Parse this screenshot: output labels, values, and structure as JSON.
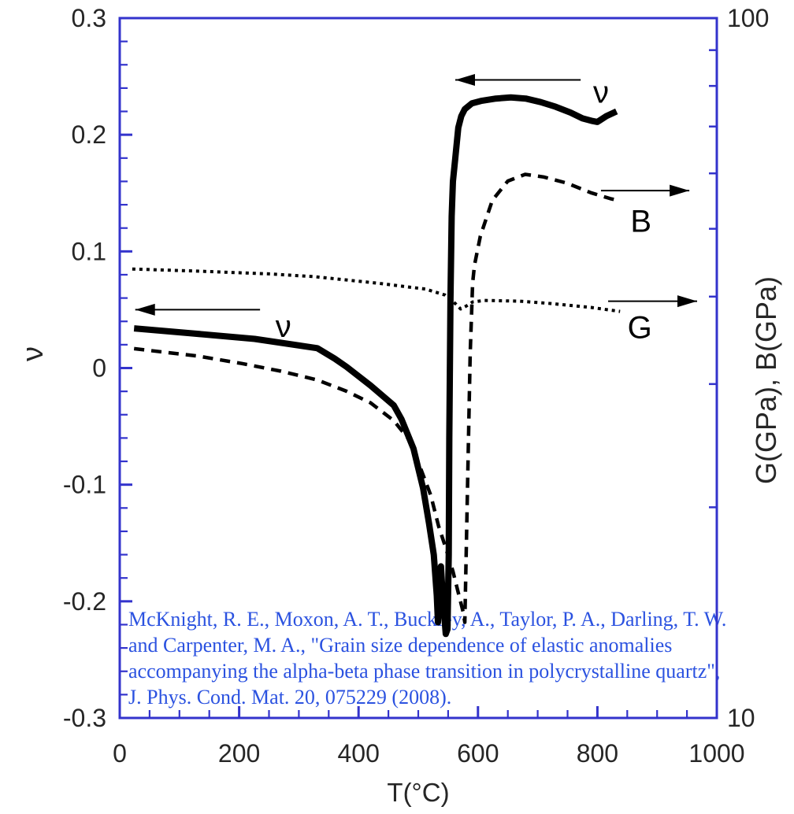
{
  "chart_data": {
    "type": "line",
    "title": "",
    "xlabel": "T(°C)",
    "ylabel_left": "ν",
    "ylabel_right": "G(GPa), B(GPa)",
    "frame_color": "#3333cc",
    "curve_color": "#000000",
    "tick_label_color": "#262626",
    "grid": false,
    "axes": {
      "bottom": {
        "min": 0,
        "max": 1000,
        "scale": "linear",
        "major_ticks": [
          0,
          200,
          400,
          600,
          800,
          1000
        ],
        "tick_labels": [
          "0",
          "200",
          "400",
          "600",
          "800",
          "1000"
        ],
        "minor_step": 50
      },
      "left": {
        "min": -0.3,
        "max": 0.3,
        "scale": "linear",
        "major_ticks": [
          0.3,
          0.2,
          0.1,
          0,
          -0.1,
          -0.2,
          -0.3
        ],
        "tick_labels": [
          "0.3",
          "0.2",
          "0.1",
          "0",
          "-0.1",
          "-0.2",
          "-0.3"
        ],
        "minor_step": 0.02
      },
      "right": {
        "min": 10,
        "max": 100,
        "scale": "log",
        "labeled_ticks": [
          100,
          10
        ],
        "tick_labels": [
          "100",
          "10"
        ],
        "minor_ticks": [
          90,
          80,
          70,
          60,
          50,
          40,
          30,
          20
        ]
      }
    },
    "series": [
      {
        "name": "nu",
        "label": "ν",
        "axis": "left",
        "style": "solid-thick",
        "points": [
          [
            24,
            0.034
          ],
          [
            116,
            0.03
          ],
          [
            226,
            0.025
          ],
          [
            331,
            0.017
          ],
          [
            360,
            0.008
          ],
          [
            380,
            0.001
          ],
          [
            420,
            -0.015
          ],
          [
            459,
            -0.032
          ],
          [
            472,
            -0.044
          ],
          [
            492,
            -0.069
          ],
          [
            508,
            -0.103
          ],
          [
            518,
            -0.133
          ],
          [
            526,
            -0.16
          ],
          [
            531,
            -0.195
          ],
          [
            533,
            -0.218
          ],
          [
            536,
            -0.186
          ],
          [
            538,
            -0.17
          ],
          [
            541,
            -0.196
          ],
          [
            546,
            -0.228
          ],
          [
            549,
            -0.224
          ],
          [
            551,
            -0.16
          ],
          [
            552,
            -0.06
          ],
          [
            554,
            0.06
          ],
          [
            556,
            0.13
          ],
          [
            558,
            0.16
          ],
          [
            562,
            0.18
          ],
          [
            567,
            0.206
          ],
          [
            572,
            0.216
          ],
          [
            578,
            0.222
          ],
          [
            590,
            0.227
          ],
          [
            605,
            0.229
          ],
          [
            630,
            0.231
          ],
          [
            655,
            0.232
          ],
          [
            680,
            0.231
          ],
          [
            705,
            0.228
          ],
          [
            730,
            0.224
          ],
          [
            755,
            0.219
          ],
          [
            775,
            0.214
          ],
          [
            790,
            0.212
          ],
          [
            800,
            0.211
          ],
          [
            815,
            0.216
          ],
          [
            832,
            0.22
          ]
        ]
      },
      {
        "name": "B",
        "label": "B",
        "axis": "right",
        "style": "dashed",
        "points": [
          [
            24,
            33.7
          ],
          [
            130,
            32.9
          ],
          [
            204,
            32.1
          ],
          [
            270,
            31.3
          ],
          [
            331,
            30.4
          ],
          [
            380,
            29.3
          ],
          [
            420,
            28.2
          ],
          [
            459,
            26.6
          ],
          [
            486,
            24.9
          ],
          [
            505,
            22.6
          ],
          [
            521,
            20.8
          ],
          [
            534,
            18.8
          ],
          [
            547,
            17.4
          ],
          [
            558,
            16.2
          ],
          [
            567,
            15.1
          ],
          [
            575,
            14.2
          ],
          [
            578,
            13.7
          ],
          [
            583,
            22.4
          ],
          [
            587,
            33.1
          ],
          [
            591,
            41.8
          ],
          [
            594,
            44.3
          ],
          [
            604,
            48.8
          ],
          [
            624,
            54.9
          ],
          [
            650,
            58.5
          ],
          [
            679,
            59.8
          ],
          [
            710,
            59.3
          ],
          [
            749,
            58.1
          ],
          [
            789,
            56.3
          ],
          [
            822,
            55.2
          ],
          [
            838,
            54.8
          ]
        ]
      },
      {
        "name": "G",
        "label": "G",
        "axis": "right",
        "style": "dotted",
        "points": [
          [
            21,
            43.8
          ],
          [
            130,
            43.5
          ],
          [
            250,
            43.1
          ],
          [
            327,
            42.7
          ],
          [
            433,
            41.8
          ],
          [
            512,
            41.0
          ],
          [
            545,
            40.2
          ],
          [
            562,
            39.1
          ],
          [
            571,
            38.4
          ],
          [
            581,
            38.8
          ],
          [
            591,
            39.3
          ],
          [
            611,
            39.5
          ],
          [
            670,
            39.4
          ],
          [
            723,
            39.1
          ],
          [
            789,
            38.6
          ],
          [
            838,
            38.1
          ]
        ]
      }
    ],
    "annotations": {
      "labels": [
        {
          "text": "ν",
          "t": 806,
          "axis": "left",
          "value": 0.237
        },
        {
          "text": "ν",
          "t": 274,
          "axis": "left",
          "value": 0.036
        },
        {
          "text": "B",
          "t": 873,
          "axis": "right",
          "value": 51.3
        },
        {
          "text": "G",
          "t": 871,
          "axis": "right",
          "value": 36.2
        }
      ],
      "arrows": [
        {
          "dir": "left",
          "axis": "left",
          "value": 0.247,
          "from_t": 772,
          "to_t": 562
        },
        {
          "dir": "left",
          "axis": "left",
          "value": 0.05,
          "from_t": 235,
          "to_t": 26
        },
        {
          "dir": "right",
          "axis": "right",
          "value": 56.7,
          "from_t": 806,
          "to_t": 954
        },
        {
          "dir": "right",
          "axis": "right",
          "value": 39.4,
          "from_t": 818,
          "to_t": 967
        }
      ]
    }
  },
  "citation": {
    "color": "#2b52e0",
    "lines": [
      "McKnight, R. E., Moxon, A. T., Buckley, A., Taylor, P. A., Darling, T. W.",
      "and Carpenter, M. A., \"Grain size dependence of elastic anomalies",
      "accompanying the alpha-beta phase transition in polycrystalline quartz\",",
      "J. Phys. Cond. Mat. 20, 075229 (2008)."
    ]
  }
}
